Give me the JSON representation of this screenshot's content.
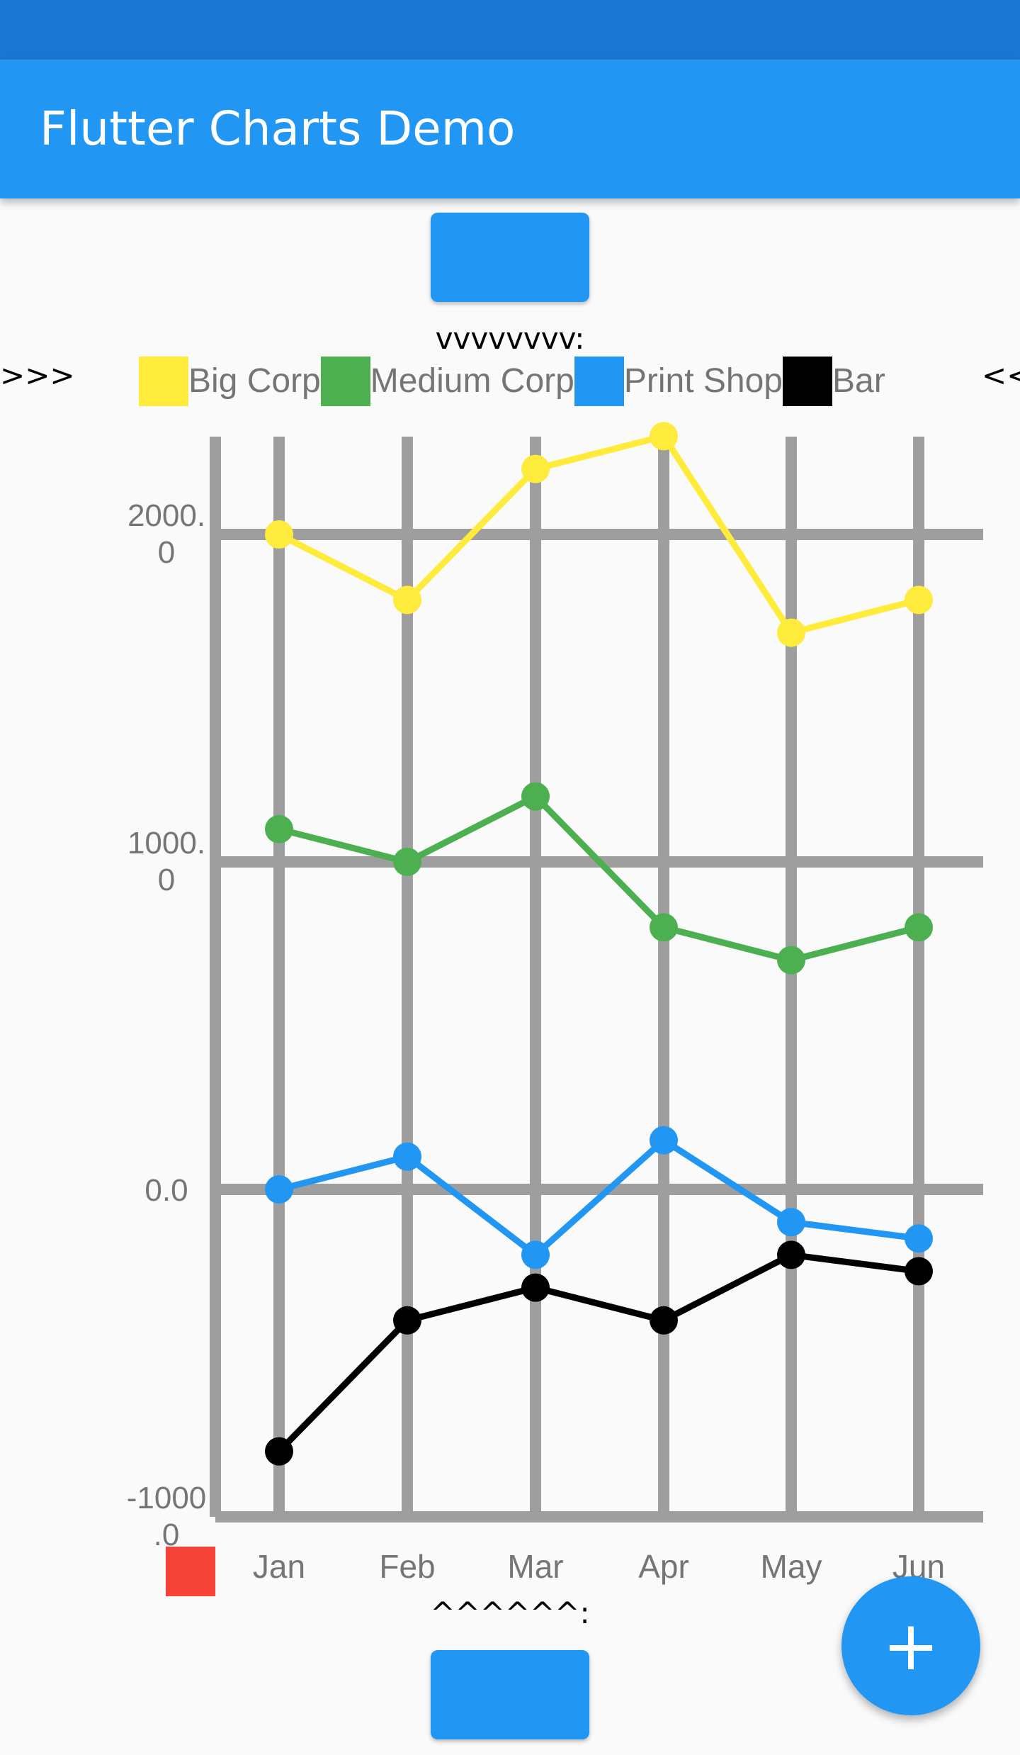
{
  "app": {
    "title": "Flutter Charts Demo"
  },
  "labels": {
    "top": "vvvvvvvv:",
    "bottom": "^^^^^^:",
    "scroll_left": ">>>",
    "scroll_right": "<<"
  },
  "fab": {
    "icon": "add-icon",
    "label": "+"
  },
  "colors": {
    "status_bar": "#1976d2",
    "app_bar": "#2196f3",
    "button": "#2196f3",
    "grid": "#9e9e9e",
    "axis_label": "#757575",
    "marker_square": "#f44336"
  },
  "chart_data": {
    "type": "line",
    "categories": [
      "Jan",
      "Feb",
      "Mar",
      "Apr",
      "May",
      "Jun"
    ],
    "y_ticks": [
      {
        "line1": "2000.",
        "line2": "0",
        "value": 2000
      },
      {
        "line1": "1000.",
        "line2": "0",
        "value": 1000
      },
      {
        "line1": "0.0",
        "line2": "",
        "value": 0
      },
      {
        "line1": "-1000",
        "line2": ".0",
        "value": -1000
      }
    ],
    "ylim": [
      -1000,
      2300
    ],
    "grid": true,
    "legend_position": "top",
    "series": [
      {
        "name": "Big Corp",
        "color": "#ffeb3b",
        "values": [
          2000,
          1800,
          2200,
          2300,
          1700,
          1800
        ]
      },
      {
        "name": "Medium Corp",
        "color": "#4caf50",
        "values": [
          1100,
          1000,
          1200,
          800,
          700,
          800
        ]
      },
      {
        "name": "Print Shop",
        "color": "#2196f3",
        "values": [
          0,
          100,
          -200,
          150,
          -100,
          -150
        ]
      },
      {
        "name": "Bar",
        "color": "#000000",
        "values": [
          -800,
          -400,
          -300,
          -400,
          -200,
          -250
        ]
      }
    ]
  }
}
